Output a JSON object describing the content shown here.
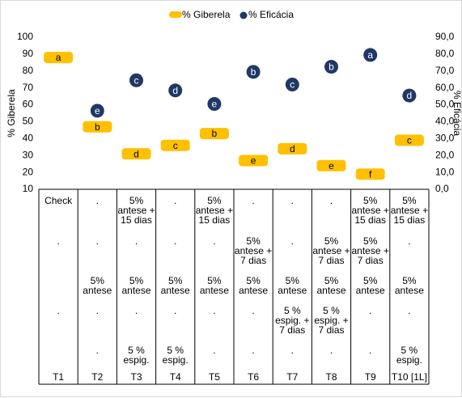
{
  "chart_data": {
    "type": "scatter",
    "categories": [
      "T1",
      "T2",
      "T3",
      "T4",
      "T5",
      "T6",
      "T7",
      "T8",
      "T9",
      "T10 [1L]"
    ],
    "series": [
      {
        "name": "% Giberela",
        "axis": "left",
        "marker": "rounded-bar",
        "color": "#FFC000",
        "values": [
          88,
          47,
          31,
          36,
          43,
          27,
          34,
          24,
          19,
          39
        ],
        "labels": [
          "a",
          "b",
          "d",
          "c",
          "b",
          "e",
          "d",
          "e",
          "f",
          "c"
        ]
      },
      {
        "name": "% Eficácia",
        "axis": "right",
        "marker": "circle",
        "color": "#1F3864",
        "values": [
          null,
          46.5,
          64.5,
          58.5,
          50.5,
          69.5,
          62,
          72.5,
          79.5,
          55.5
        ],
        "labels": [
          "",
          "e",
          "c",
          "d",
          "e",
          "b",
          "c",
          "b",
          "a",
          "d"
        ]
      }
    ],
    "ylabel": "% Giberela",
    "y2label": "% Eficácia",
    "ylim": [
      10,
      100
    ],
    "y2lim": [
      0,
      90
    ],
    "yticks": [
      "10",
      "20",
      "30",
      "40",
      "50",
      "60",
      "70",
      "80",
      "90",
      "100"
    ],
    "y2ticks": [
      "0,0",
      "10,0",
      "20,0",
      "30,0",
      "40,0",
      "50,0",
      "60,0",
      "70,0",
      "80,0",
      "90,0"
    ],
    "legend_position": "top",
    "grid": false,
    "table": {
      "rows": [
        [
          "Check",
          ".",
          "5%\nantese +\n15 dias",
          ".",
          "5%\nantese +\n15 dias",
          ".",
          ".",
          ".",
          "5%\nantese +\n15 dias",
          "5%\nantese +\n15 dias"
        ],
        [
          ".",
          ".",
          ".",
          ".",
          ".",
          "5%\nantese +\n7 dias",
          ".",
          "5%\nantese +\n7 dias",
          "5%\nantese +\n7 dias",
          "."
        ],
        [
          "",
          "5%\nantese",
          "5%\nantese",
          "5%\nantese",
          "5%\nantese",
          "5%\nantese",
          "5%\nantese",
          "5%\nantese",
          "5%\nantese",
          "5%\nantese"
        ],
        [
          ".",
          ".",
          ".",
          ".",
          ".",
          ".",
          "5 %\nespig. +\n7 dias",
          "5 %\nespig. +\n7 dias",
          ".",
          "."
        ],
        [
          "",
          ".",
          "5 %\nespig.",
          "5 %\nespig.",
          ".",
          ".",
          ".",
          ".",
          ".",
          "5 %\nespig."
        ]
      ]
    }
  }
}
